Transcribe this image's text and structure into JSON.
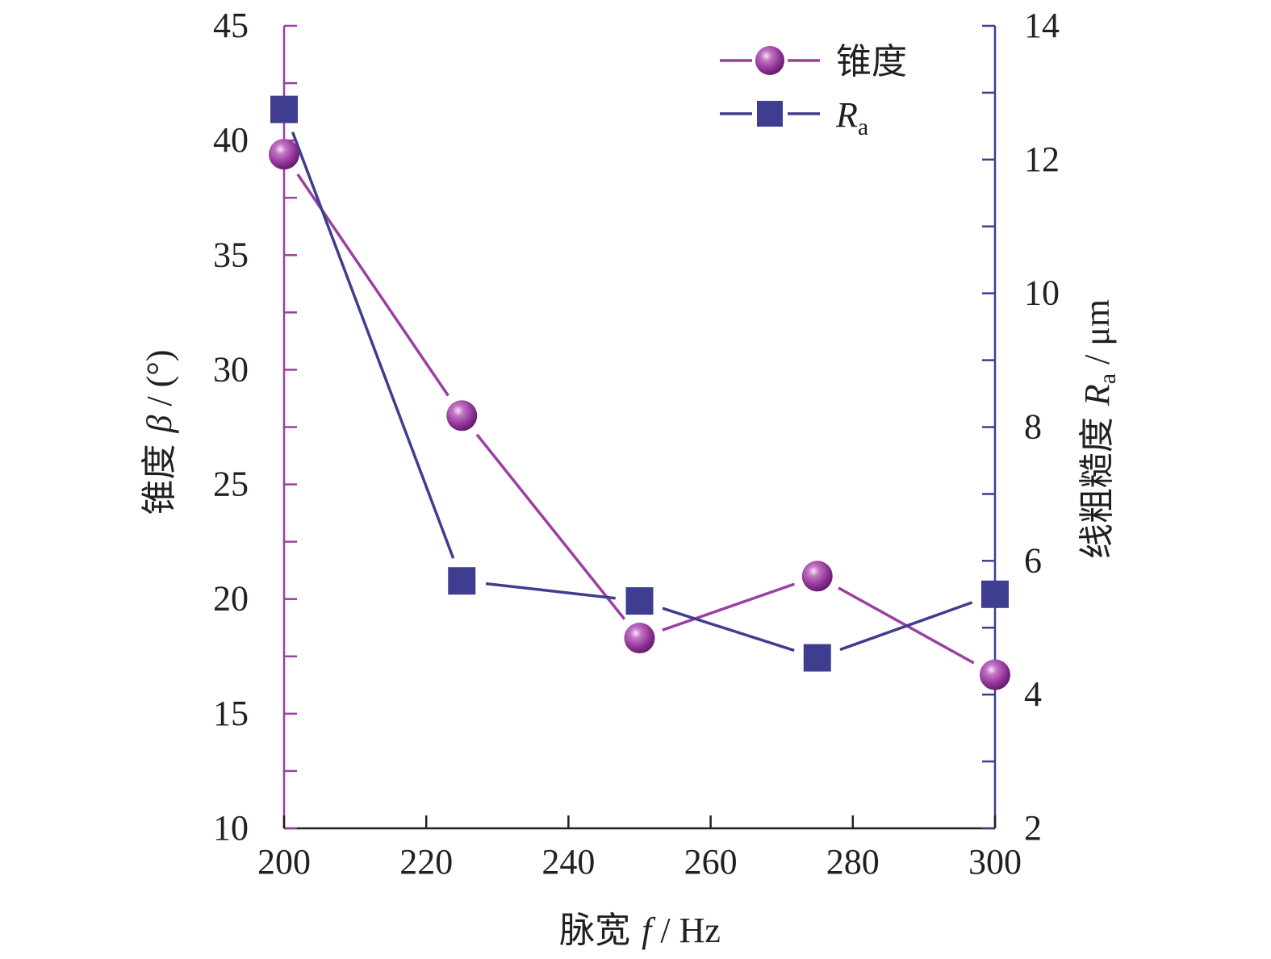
{
  "chart_data": {
    "type": "line",
    "x": [
      200,
      225,
      250,
      275,
      300
    ],
    "xlim": [
      200,
      300
    ],
    "xticks": [
      "200",
      "220",
      "240",
      "260",
      "280",
      "300"
    ],
    "xlabel": {
      "prefix": "脉宽 ",
      "var": "f",
      "unit": " / Hz"
    },
    "ylim_left": [
      10,
      45
    ],
    "yticks_left": [
      "10",
      "15",
      "20",
      "25",
      "30",
      "35",
      "40",
      "45"
    ],
    "ylabel_left": {
      "prefix": "锥度 ",
      "var": "β",
      "unit": " / (°)"
    },
    "ylim_right": [
      2,
      14
    ],
    "yticks_right": [
      "2",
      "4",
      "6",
      "8",
      "10",
      "12",
      "14"
    ],
    "ylabel_right": {
      "prefix": "线粗糙度 ",
      "var": "R",
      "sub": "a",
      "unit": " / μm"
    },
    "series": [
      {
        "name": "锥度",
        "axis": "left",
        "color": "#9b3fa0",
        "marker": "circle",
        "values": [
          39.4,
          28.0,
          18.3,
          21.0,
          16.7
        ]
      },
      {
        "name": "R",
        "name_sub": "a",
        "axis": "right",
        "color": "#3e3d8f",
        "marker": "square",
        "values": [
          12.75,
          5.7,
          5.4,
          4.55,
          5.5
        ]
      }
    ],
    "legend": "top-right",
    "grid": false
  }
}
